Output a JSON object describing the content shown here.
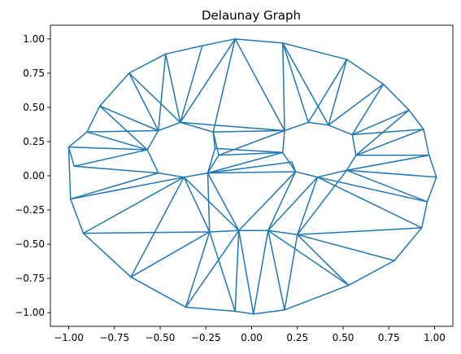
{
  "chart_data": {
    "type": "line",
    "title": "Delaunay Graph",
    "xlabel": "",
    "ylabel": "",
    "xlim": [
      -1.1,
      1.1
    ],
    "ylim": [
      -1.1,
      1.1
    ],
    "x_ticks": [
      -1.0,
      -0.75,
      -0.5,
      -0.25,
      0.0,
      0.25,
      0.5,
      0.75,
      1.0
    ],
    "x_tick_labels": [
      "−1.00",
      "−0.75",
      "−0.50",
      "−0.25",
      "0.00",
      "0.25",
      "0.50",
      "0.75",
      "1.00"
    ],
    "y_ticks": [
      1.0,
      0.75,
      0.5,
      0.25,
      0.0,
      -0.25,
      -0.5,
      -0.75,
      -1.0
    ],
    "y_tick_labels": [
      "1.00",
      "0.75",
      "0.50",
      "0.25",
      "0.00",
      "−0.25",
      "−0.50",
      "−0.75",
      "−1.00"
    ],
    "grid": false,
    "edge_color": "#1f77b4",
    "nodes": [
      [
        -0.09,
        1.0
      ],
      [
        0.17,
        0.97
      ],
      [
        0.52,
        0.85
      ],
      [
        0.72,
        0.67
      ],
      [
        0.86,
        0.48
      ],
      [
        0.94,
        0.34
      ],
      [
        0.97,
        0.15
      ],
      [
        1.01,
        -0.01
      ],
      [
        0.96,
        -0.19
      ],
      [
        0.93,
        -0.38
      ],
      [
        0.78,
        -0.62
      ],
      [
        0.53,
        -0.8
      ],
      [
        0.18,
        -0.98
      ],
      [
        0.01,
        -1.01
      ],
      [
        -0.09,
        -0.99
      ],
      [
        -0.36,
        -0.96
      ],
      [
        -0.66,
        -0.74
      ],
      [
        -0.92,
        -0.42
      ],
      [
        -0.99,
        -0.17
      ],
      [
        -1.0,
        0.21
      ],
      [
        -0.97,
        0.07
      ],
      [
        -0.9,
        0.32
      ],
      [
        -0.83,
        0.51
      ],
      [
        -0.67,
        0.75
      ],
      [
        -0.47,
        0.89
      ],
      [
        -0.27,
        0.95
      ],
      [
        -0.39,
        0.39
      ],
      [
        -0.21,
        0.32
      ],
      [
        -0.18,
        0.15
      ],
      [
        -0.24,
        0.02
      ],
      [
        -0.37,
        -0.01
      ],
      [
        -0.51,
        0.02
      ],
      [
        -0.57,
        0.19
      ],
      [
        -0.51,
        0.33
      ],
      [
        0.18,
        0.33
      ],
      [
        0.31,
        0.39
      ],
      [
        0.42,
        0.37
      ],
      [
        0.55,
        0.3
      ],
      [
        0.57,
        0.15
      ],
      [
        0.52,
        0.04
      ],
      [
        0.36,
        -0.01
      ],
      [
        0.24,
        0.03
      ],
      [
        0.17,
        0.17
      ],
      [
        -0.23,
        -0.41
      ],
      [
        -0.07,
        -0.4
      ],
      [
        0.09,
        -0.4
      ],
      [
        0.25,
        -0.43
      ],
      [
        -0.2,
        0.2
      ],
      [
        0.22,
        0.1
      ]
    ],
    "edges": [
      [
        0,
        1
      ],
      [
        1,
        2
      ],
      [
        2,
        3
      ],
      [
        3,
        4
      ],
      [
        4,
        5
      ],
      [
        5,
        6
      ],
      [
        6,
        7
      ],
      [
        7,
        8
      ],
      [
        8,
        9
      ],
      [
        9,
        10
      ],
      [
        10,
        11
      ],
      [
        11,
        12
      ],
      [
        12,
        13
      ],
      [
        13,
        14
      ],
      [
        14,
        15
      ],
      [
        15,
        16
      ],
      [
        16,
        17
      ],
      [
        17,
        18
      ],
      [
        18,
        19
      ],
      [
        19,
        20
      ],
      [
        19,
        21
      ],
      [
        21,
        22
      ],
      [
        22,
        23
      ],
      [
        23,
        24
      ],
      [
        24,
        25
      ],
      [
        25,
        0
      ],
      [
        26,
        27
      ],
      [
        27,
        28
      ],
      [
        28,
        29
      ],
      [
        29,
        30
      ],
      [
        30,
        31
      ],
      [
        31,
        32
      ],
      [
        32,
        33
      ],
      [
        33,
        26
      ],
      [
        34,
        35
      ],
      [
        35,
        36
      ],
      [
        36,
        37
      ],
      [
        37,
        38
      ],
      [
        38,
        39
      ],
      [
        39,
        40
      ],
      [
        40,
        41
      ],
      [
        41,
        42
      ],
      [
        42,
        34
      ],
      [
        43,
        44
      ],
      [
        44,
        45
      ],
      [
        45,
        46
      ],
      [
        0,
        27
      ],
      [
        25,
        26
      ],
      [
        24,
        26
      ],
      [
        0,
        34
      ],
      [
        1,
        35
      ],
      [
        1,
        34
      ],
      [
        2,
        36
      ],
      [
        2,
        35
      ],
      [
        3,
        37
      ],
      [
        3,
        36
      ],
      [
        4,
        37
      ],
      [
        4,
        38
      ],
      [
        5,
        38
      ],
      [
        6,
        38
      ],
      [
        7,
        39
      ],
      [
        8,
        39
      ],
      [
        9,
        40
      ],
      [
        9,
        46
      ],
      [
        10,
        46
      ],
      [
        11,
        46
      ],
      [
        11,
        45
      ],
      [
        12,
        45
      ],
      [
        13,
        45
      ],
      [
        13,
        44
      ],
      [
        14,
        44
      ],
      [
        14,
        43
      ],
      [
        15,
        43
      ],
      [
        16,
        43
      ],
      [
        17,
        43
      ],
      [
        17,
        30
      ],
      [
        18,
        31
      ],
      [
        18,
        30
      ],
      [
        20,
        31
      ],
      [
        19,
        32
      ],
      [
        21,
        32
      ],
      [
        22,
        33
      ],
      [
        22,
        32
      ],
      [
        23,
        26
      ],
      [
        23,
        33
      ],
      [
        24,
        33
      ],
      [
        26,
        34
      ],
      [
        27,
        34
      ],
      [
        28,
        42
      ],
      [
        28,
        34
      ],
      [
        29,
        41
      ],
      [
        29,
        42
      ],
      [
        30,
        43
      ],
      [
        29,
        43
      ],
      [
        29,
        44
      ],
      [
        30,
        44
      ],
      [
        40,
        45
      ],
      [
        41,
        45
      ],
      [
        41,
        44
      ],
      [
        40,
        46
      ],
      [
        39,
        46
      ],
      [
        47,
        27
      ],
      [
        47,
        29
      ],
      [
        47,
        42
      ],
      [
        48,
        41
      ],
      [
        48,
        29
      ],
      [
        0,
        26
      ],
      [
        1,
        36
      ],
      [
        5,
        37
      ],
      [
        6,
        39
      ],
      [
        8,
        40
      ],
      [
        12,
        46
      ],
      [
        15,
        44
      ],
      [
        16,
        30
      ],
      [
        20,
        32
      ],
      [
        21,
        33
      ]
    ]
  }
}
